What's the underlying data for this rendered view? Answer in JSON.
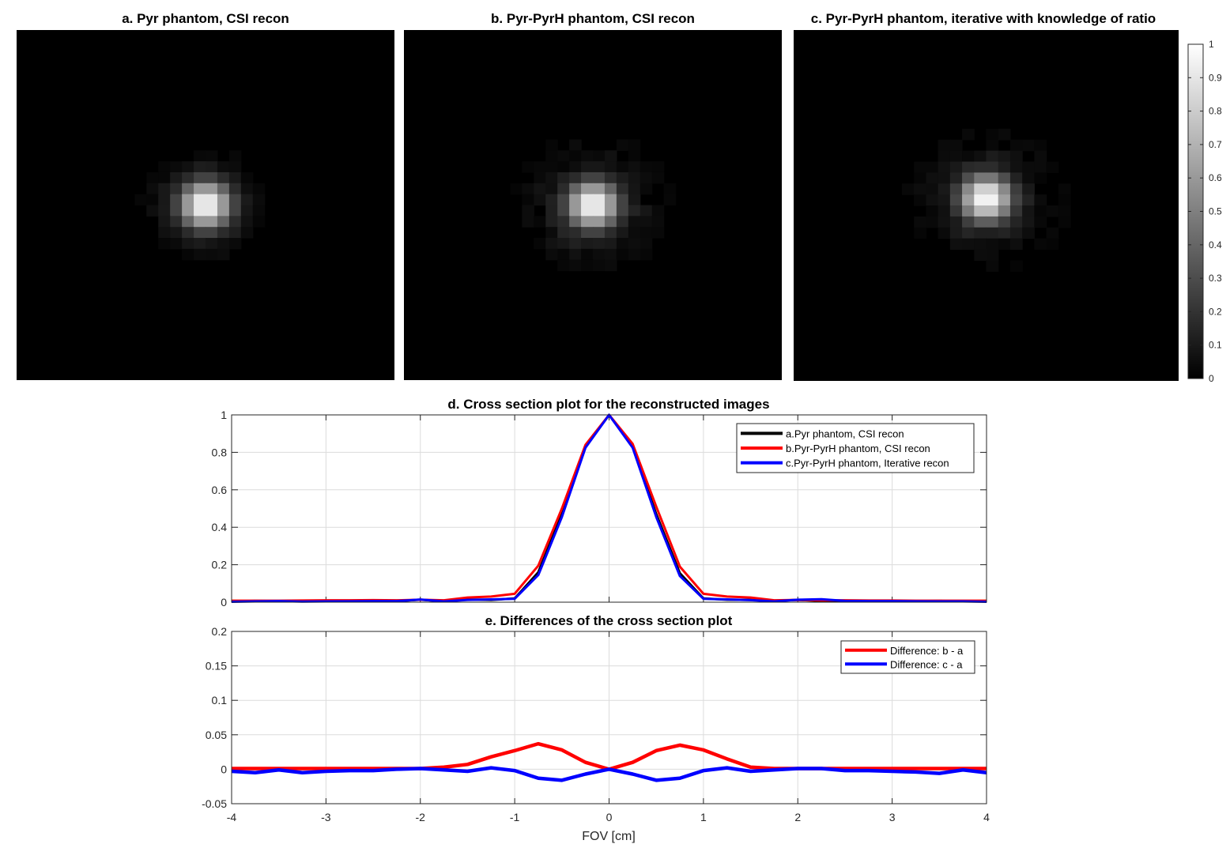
{
  "images": [
    {
      "title": "a. Pyr phantom, CSI recon",
      "sidelobe": 0.1,
      "spread": 1.0,
      "center": [
        0.5,
        0.5
      ]
    },
    {
      "title": "b. Pyr-PyrH phantom, CSI recon",
      "sidelobe": 0.16,
      "spread": 1.25,
      "center": [
        0.5,
        0.5
      ]
    },
    {
      "title": "c. Pyr-PyrH phantom, iterative with knowledge of ratio",
      "sidelobe": 0.14,
      "spread": 1.35,
      "center": [
        0.5,
        0.48
      ]
    }
  ],
  "colorbar": {
    "ticks": [
      "0",
      "0.1",
      "0.2",
      "0.3",
      "0.4",
      "0.5",
      "0.6",
      "0.7",
      "0.8",
      "0.9",
      "1"
    ],
    "range": [
      0,
      1
    ],
    "colormap": "gray"
  },
  "chart_data": [
    {
      "type": "line",
      "title": "d. Cross section plot for the reconstructed images",
      "xlim": [
        -4,
        4
      ],
      "ylim": [
        0,
        1
      ],
      "xticks": [
        "-4",
        "-3",
        "-2",
        "-1",
        "0",
        "1",
        "2",
        "3",
        "4"
      ],
      "yticks": [
        "0",
        "0.2",
        "0.4",
        "0.6",
        "0.8",
        "1"
      ],
      "grid": true,
      "legend_position": "top-right",
      "x": [
        -4.0,
        -3.75,
        -3.5,
        -3.25,
        -3.0,
        -2.75,
        -2.5,
        -2.25,
        -2.0,
        -1.75,
        -1.5,
        -1.25,
        -1.0,
        -0.75,
        -0.5,
        -0.25,
        0.0,
        0.25,
        0.5,
        0.75,
        1.0,
        1.25,
        1.5,
        1.75,
        2.0,
        2.25,
        2.5,
        2.75,
        3.0,
        3.25,
        3.5,
        3.75,
        4.0
      ],
      "series": [
        {
          "name": "a.Pyr phantom, CSI recon",
          "color": "#000000",
          "values": [
            0.005,
            0.007,
            0.006,
            0.008,
            0.008,
            0.007,
            0.009,
            0.006,
            0.013,
            0.005,
            0.014,
            0.012,
            0.02,
            0.16,
            0.47,
            0.83,
            1.0,
            0.83,
            0.47,
            0.155,
            0.02,
            0.013,
            0.012,
            0.008,
            0.012,
            0.007,
            0.008,
            0.007,
            0.008,
            0.006,
            0.007,
            0.005,
            0.005
          ]
        },
        {
          "name": "b.Pyr-PyrH phantom, CSI recon",
          "color": "#ff0000",
          "values": [
            0.008,
            0.008,
            0.008,
            0.009,
            0.01,
            0.01,
            0.011,
            0.01,
            0.013,
            0.01,
            0.025,
            0.03,
            0.045,
            0.195,
            0.5,
            0.84,
            1.0,
            0.845,
            0.51,
            0.19,
            0.045,
            0.03,
            0.025,
            0.01,
            0.012,
            0.01,
            0.01,
            0.009,
            0.009,
            0.008,
            0.008,
            0.008,
            0.008
          ]
        },
        {
          "name": "c.Pyr-PyrH phantom, Iterative recon",
          "color": "#0000ff",
          "values": [
            0.002,
            0.004,
            0.006,
            0.003,
            0.004,
            0.005,
            0.006,
            0.006,
            0.014,
            0.004,
            0.012,
            0.015,
            0.018,
            0.145,
            0.455,
            0.825,
            1.0,
            0.825,
            0.455,
            0.14,
            0.018,
            0.015,
            0.011,
            0.004,
            0.013,
            0.016,
            0.007,
            0.006,
            0.006,
            0.005,
            0.004,
            0.004,
            0.002
          ]
        }
      ]
    },
    {
      "type": "line",
      "title": "e. Differences of the cross section plot",
      "xlabel": "FOV [cm]",
      "xlim": [
        -4,
        4
      ],
      "ylim": [
        -0.05,
        0.2
      ],
      "xticks": [
        "-4",
        "-3",
        "-2",
        "-1",
        "0",
        "1",
        "2",
        "3",
        "4"
      ],
      "yticks": [
        "-0.05",
        "0",
        "0.05",
        "0.1",
        "0.15",
        "0.2"
      ],
      "grid": true,
      "legend_position": "top-right",
      "x": [
        -4.0,
        -3.75,
        -3.5,
        -3.25,
        -3.0,
        -2.75,
        -2.5,
        -2.25,
        -2.0,
        -1.75,
        -1.5,
        -1.25,
        -1.0,
        -0.75,
        -0.5,
        -0.25,
        0.0,
        0.25,
        0.5,
        0.75,
        1.0,
        1.25,
        1.5,
        1.75,
        2.0,
        2.25,
        2.5,
        2.75,
        3.0,
        3.25,
        3.5,
        3.75,
        4.0
      ],
      "series": [
        {
          "name": "Difference: b - a",
          "color": "#ff0000",
          "values": [
            0.001,
            0.001,
            0.001,
            0.001,
            0.001,
            0.001,
            0.001,
            0.001,
            0.001,
            0.003,
            0.007,
            0.018,
            0.027,
            0.037,
            0.028,
            0.01,
            0.0,
            0.01,
            0.027,
            0.035,
            0.028,
            0.015,
            0.003,
            0.001,
            0.001,
            0.001,
            0.001,
            0.001,
            0.001,
            0.001,
            0.001,
            0.001,
            0.001
          ]
        },
        {
          "name": "Difference: c - a",
          "color": "#0000ff",
          "values": [
            -0.003,
            -0.005,
            -0.001,
            -0.005,
            -0.003,
            -0.002,
            -0.002,
            0.0,
            0.001,
            -0.001,
            -0.003,
            0.002,
            -0.002,
            -0.013,
            -0.016,
            -0.007,
            0.0,
            -0.007,
            -0.016,
            -0.013,
            -0.002,
            0.002,
            -0.003,
            -0.001,
            0.001,
            0.001,
            -0.002,
            -0.002,
            -0.003,
            -0.004,
            -0.006,
            -0.001,
            -0.005
          ]
        }
      ]
    }
  ]
}
